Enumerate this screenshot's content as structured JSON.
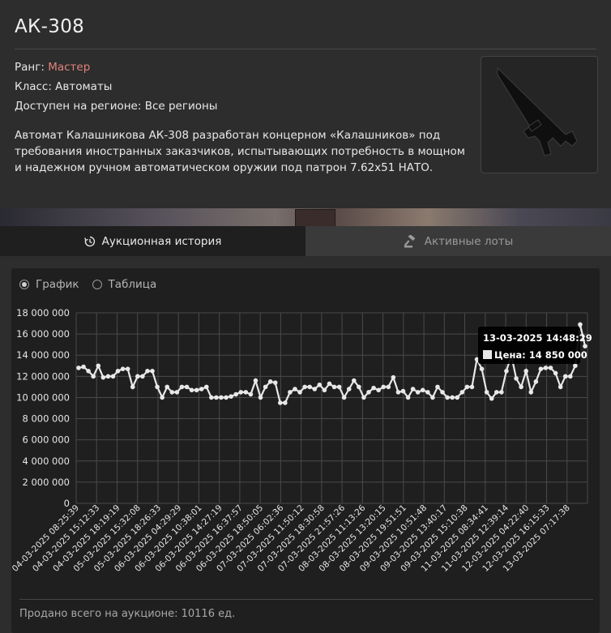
{
  "item": {
    "title": "АК-308",
    "rank_label": "Ранг:",
    "rank_value": "Мастер",
    "class_line": "Класс: Автоматы",
    "region_line": "Доступен на регионе: Все регионы",
    "description": "Автомат Калашникова АК-308 разработан концерном «Калашников» под требования иностранных заказчиков, испытывающих потребность в мощном и надежном ручном автоматическом оружии под патрон 7.62x51 НАТО."
  },
  "tabs": [
    {
      "label": "Аукционная история",
      "icon": "history-icon",
      "active": true
    },
    {
      "label": "Активные лоты",
      "icon": "gavel-icon",
      "active": false
    }
  ],
  "view_options": {
    "chart_label": "График",
    "table_label": "Таблица",
    "selected": "chart"
  },
  "tooltip": {
    "date": "13-03-2025 14:48:29",
    "price_text": "Цена: 14 850 000"
  },
  "footer": {
    "sold_total": "Продано всего на аукционе: 10116 ед."
  },
  "colors": {
    "rank": "#e0837a",
    "line": "#e8e8e8",
    "tooltip_bg": "#000000"
  },
  "chart_data": {
    "type": "line",
    "ylim": [
      0,
      18000000
    ],
    "y_ticks": [
      0,
      2000000,
      4000000,
      6000000,
      8000000,
      10000000,
      12000000,
      14000000,
      16000000,
      18000000
    ],
    "y_tick_labels": [
      "0",
      "2 000 000",
      "4 000 000",
      "6 000 000",
      "8 000 000",
      "10 000 000",
      "12 000 000",
      "14 000 000",
      "16 000 000",
      "18 000 000"
    ],
    "x_tick_labels": [
      "04-03-2025 08:25:39",
      "04-03-2025 15:12:33",
      "04-03-2025 18:19:19",
      "05-03-2025 15:32:08",
      "05-03-2025 18:26:33",
      "06-03-2025 04:29:29",
      "06-03-2025 10:38:01",
      "06-03-2025 14:27:19",
      "06-03-2025 16:37:57",
      "06-03-2025 18:50:05",
      "07-03-2025 06:02:36",
      "07-03-2025 11:50:12",
      "07-03-2025 18:30:58",
      "07-03-2025 21:57:26",
      "08-03-2025 11:13:26",
      "08-03-2025 13:20:15",
      "08-03-2025 19:51:51",
      "09-03-2025 10:51:48",
      "09-03-2025 13:40:17",
      "09-03-2025 15:10:38",
      "11-03-2025 08:34:41",
      "11-03-2025 12:39:14",
      "12-03-2025 04:22:40",
      "12-03-2025 16:15:33",
      "13-03-2025 07:17:38"
    ],
    "grid": true,
    "series": [
      {
        "values": [
          12800000,
          12900000,
          12500000,
          12000000,
          13000000,
          11900000,
          12000000,
          12000000,
          12500000,
          12700000,
          12700000,
          11000000,
          12000000,
          12000000,
          12500000,
          12500000,
          11000000,
          10000000,
          11000000,
          10500000,
          10500000,
          11000000,
          11000000,
          10700000,
          10700000,
          10800000,
          11000000,
          10000000,
          10000000,
          10000000,
          10000000,
          10100000,
          10300000,
          10500000,
          10500000,
          10300000,
          11600000,
          10000000,
          11000000,
          11500000,
          11400000,
          9500000,
          9500000,
          10500000,
          10800000,
          10500000,
          11000000,
          11000000,
          10800000,
          11200000,
          10700000,
          11300000,
          11000000,
          11000000,
          10000000,
          10800000,
          11600000,
          11000000,
          10000000,
          10500000,
          10900000,
          10700000,
          11000000,
          11000000,
          11900000,
          10500000,
          10600000,
          10000000,
          10800000,
          10500000,
          10700000,
          10500000,
          10000000,
          11000000,
          10500000,
          10000000,
          10000000,
          10000000,
          10500000,
          11000000,
          11000000,
          13600000,
          12700000,
          10500000,
          9900000,
          10500000,
          10500000,
          12500000,
          14000000,
          11800000,
          11000000,
          12500000,
          10500000,
          11500000,
          12700000,
          12800000,
          12800000,
          12300000,
          11000000,
          12000000,
          12000000,
          13000000,
          16900000,
          14850000
        ]
      }
    ],
    "highlight_index": 103
  }
}
